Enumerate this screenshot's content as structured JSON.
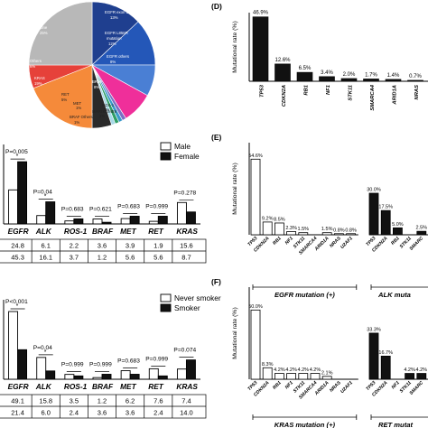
{
  "chart_data": [
    {
      "type": "pie",
      "slices": [
        {
          "label": "EGFR exon 19 deletion",
          "value": 13,
          "color": "#1f3f8f"
        },
        {
          "label": "EGFR L858R mutation",
          "value": 12,
          "color": "#2457b8"
        },
        {
          "label": "EGFR others",
          "value": 8,
          "color": "#4a7fd4"
        },
        {
          "label": "BRAF",
          "value": 8,
          "color": "#ef2f9a"
        },
        {
          "label": "ROS-1",
          "value": 1,
          "color": "#7a6fc4"
        },
        {
          "label": "MAP2K1/MEK",
          "value": 1,
          "color": "#3a9ac9"
        },
        {
          "label": "BRAF Others",
          "value": 1,
          "color": "#2e9e66"
        },
        {
          "label": "MET",
          "value": 1,
          "color": "#a8d9e8"
        },
        {
          "label": "RET",
          "value": 5,
          "color": "#2a2a2a"
        },
        {
          "label": "KRAS",
          "value": 19,
          "color": "#f58a3a"
        },
        {
          "label": "Others",
          "value": 6,
          "color": "#e6413a"
        },
        {
          "label": "None",
          "value": 25,
          "color": "#b8b8b8"
        }
      ],
      "label_texts": [
        "EGFR exon 19 deletion",
        "13%",
        "EGFR L858R",
        "mutation",
        "12%",
        "EGFR others",
        "8%",
        "BRAF",
        "8%",
        "ROS-1",
        "1%",
        "MAP2K1/MEK",
        "1%",
        "BRAF Others",
        "1%",
        "MET",
        "1%",
        "RET",
        "5%",
        "KRAS",
        "19%",
        "Others",
        "6%",
        "None",
        "25%"
      ]
    },
    {
      "type": "bar",
      "categories": [
        "EGFR",
        "ALK",
        "ROS-1",
        "BRAF",
        "MET",
        "RET",
        "KRAS"
      ],
      "series": [
        {
          "name": "Male",
          "values": [
            24.8,
            6.1,
            2.2,
            3.6,
            3.9,
            1.9,
            15.6
          ],
          "color": "#ffffff"
        },
        {
          "name": "Female",
          "values": [
            45.3,
            16.1,
            3.7,
            1.2,
            5.6,
            5.6,
            8.7
          ],
          "color": "#111111"
        }
      ],
      "pvalues": [
        "P=0.005",
        "P=0.04",
        "P=0.683",
        "P=0.621",
        "P=0.683",
        "P=0.999",
        "P=0.278"
      ],
      "stars": [
        "*",
        "*",
        "",
        "",
        "",
        "",
        ""
      ],
      "ylim": [
        0,
        50
      ],
      "table_rows": [
        [
          "24.8",
          "6.1",
          "2.2",
          "3.6",
          "3.9",
          "1.9",
          "15.6"
        ],
        [
          "45.3",
          "16.1",
          "3.7",
          "1.2",
          "5.6",
          "5.6",
          "8.7"
        ]
      ]
    },
    {
      "type": "bar",
      "categories": [
        "EGFR",
        "ALK",
        "ROS-1",
        "BRAF",
        "MET",
        "RET",
        "KRAS"
      ],
      "series": [
        {
          "name": "Never smoker",
          "values": [
            49.1,
            15.8,
            3.5,
            1.2,
            6.2,
            7.6,
            7.4
          ],
          "color": "#ffffff"
        },
        {
          "name": "Smoker",
          "values": [
            21.4,
            6.0,
            2.4,
            3.6,
            3.6,
            2.4,
            14.0
          ],
          "color": "#111111"
        }
      ],
      "pvalues": [
        "P<0.001",
        "P=0.04",
        "P=0.999",
        "P=0.999",
        "P=0.683",
        "P=0.999",
        "P=0.074"
      ],
      "stars": [
        "*",
        "*",
        "",
        "",
        "",
        "",
        ""
      ],
      "ylim": [
        0,
        55
      ],
      "table_rows": [
        [
          "49.1",
          "15.8",
          "3.5",
          "1.2",
          "6.2",
          "7.6",
          "7.4"
        ],
        [
          "21.4",
          "6.0",
          "2.4",
          "3.6",
          "3.6",
          "2.4",
          "14.0"
        ]
      ]
    },
    {
      "type": "bar",
      "panel": "(D)",
      "ylabel": "Mutational rate (%)",
      "categories": [
        "TP53",
        "CDKN2A",
        "RB1",
        "NF1",
        "STK11",
        "SMARCA4",
        "ARID1A",
        "NRAS"
      ],
      "values": [
        46.9,
        12.6,
        6.5,
        3.4,
        2.0,
        1.7,
        1.4,
        0.7
      ],
      "labels": [
        "46.9%",
        "12.6%",
        "6.5%",
        "3.4%",
        "2.0%",
        "1.7%",
        "1.4%",
        "0.7%"
      ],
      "ylim": [
        0,
        50
      ]
    },
    {
      "type": "bar",
      "panel": "(E)",
      "ylabel": "Mutational rate (%)",
      "groups": [
        {
          "caption": "EGFR mutation (+)",
          "categories": [
            "TP53",
            "CDKN2A",
            "RB1",
            "NF1",
            "STK11",
            "SMARCA4",
            "ARID1A",
            "NRAS",
            "U2AF1"
          ],
          "values": [
            54.6,
            9.2,
            8.5,
            2.3,
            1.5,
            0,
            1.5,
            0.8,
            0.8
          ],
          "labels": [
            "54.6%",
            "9.2%",
            "8.5%",
            "2.3%",
            "1.5%",
            "",
            "1.5%",
            "0.8%",
            "0.8%"
          ],
          "fill": "#ffffff"
        },
        {
          "caption": "ALK muta",
          "categories": [
            "TP53",
            "CDKN2A",
            "RB1",
            "STK11",
            "SMARC"
          ],
          "values": [
            30.0,
            17.5,
            5.0,
            0,
            2.5
          ],
          "labels": [
            "30.0%",
            "17.5%",
            "5.0%",
            "",
            "2.5%"
          ],
          "fill": "#111111"
        }
      ],
      "ylim": [
        0,
        60
      ]
    },
    {
      "type": "bar",
      "panel": "(F)",
      "ylabel": "Mutational rate (%)",
      "groups": [
        {
          "caption": "KRAS mutation (+)",
          "categories": [
            "TP53",
            "CDKN2A",
            "RB1",
            "NF1",
            "STK11",
            "SMARCA4",
            "ARID1A",
            "NRAS",
            "U2AF1"
          ],
          "values": [
            50.0,
            8.3,
            4.2,
            4.2,
            4.2,
            4.2,
            2.1,
            0,
            0
          ],
          "labels": [
            "50.0%",
            "8.3%",
            "4.2%",
            "4.2%",
            "4.2%",
            "4.2%",
            "2.1%",
            "",
            ""
          ],
          "fill": "#ffffff"
        },
        {
          "caption": "RET mutat",
          "categories": [
            "TP53",
            "CDKN2A",
            "NF1",
            "STK11",
            "SMARC"
          ],
          "values": [
            33.3,
            16.7,
            0,
            4.2,
            4.2
          ],
          "labels": [
            "33.3%",
            "16.7%",
            "",
            "4.2%",
            "4.2%"
          ],
          "fill": "#111111"
        }
      ],
      "ylim": [
        0,
        60
      ]
    }
  ]
}
